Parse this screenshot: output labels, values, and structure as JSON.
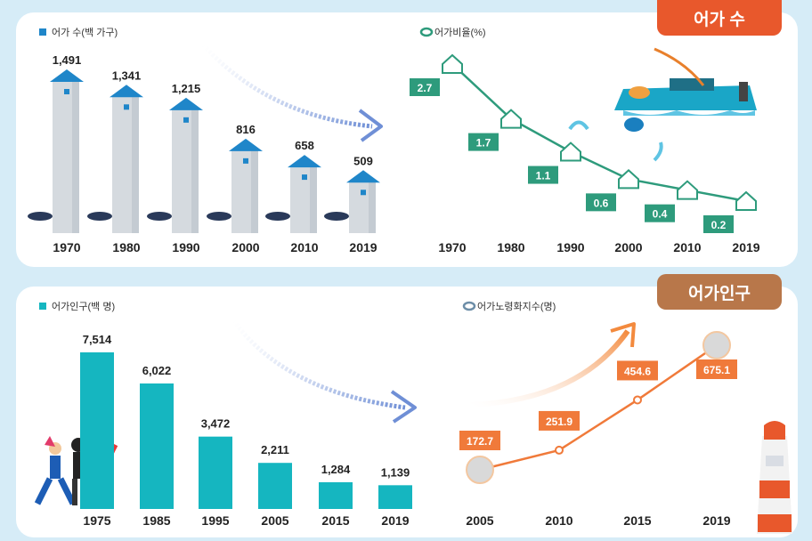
{
  "ribbons": {
    "top": "어가 수",
    "bottom": "어가인구"
  },
  "colors": {
    "house_blue": "#1f86c9",
    "pillar": "#d5dadf",
    "teal_line": "#2e9b7c",
    "bar_teal": "#15b6c0",
    "orange": "#f07a3a",
    "ribbon_orange": "#e8582c",
    "ribbon_brown": "#b8774a"
  },
  "chart_data": [
    {
      "type": "bar",
      "legend": "어가 수(백 가구)",
      "categories": [
        "1970",
        "1980",
        "1990",
        "2000",
        "2010",
        "2019"
      ],
      "values": [
        1491,
        1341,
        1215,
        816,
        658,
        509
      ],
      "value_labels": [
        "1,491",
        "1,341",
        "1,215",
        "816",
        "658",
        "509"
      ]
    },
    {
      "type": "line",
      "legend": "어가비율(%)",
      "categories": [
        "1970",
        "1980",
        "1990",
        "2000",
        "2010",
        "2019"
      ],
      "values": [
        2.7,
        1.7,
        1.1,
        0.6,
        0.4,
        0.2
      ],
      "value_labels": [
        "2.7",
        "1.7",
        "1.1",
        "0.6",
        "0.4",
        "0.2"
      ]
    },
    {
      "type": "bar",
      "legend": "어가인구(백 명)",
      "categories": [
        "1975",
        "1985",
        "1995",
        "2005",
        "2015",
        "2019"
      ],
      "values": [
        7514,
        6022,
        3472,
        2211,
        1284,
        1139
      ],
      "value_labels": [
        "7,514",
        "6,022",
        "3,472",
        "2,211",
        "1,284",
        "1,139"
      ]
    },
    {
      "type": "line",
      "legend": "어가노령화지수(명)",
      "categories": [
        "2005",
        "2010",
        "2015",
        "2019"
      ],
      "values": [
        172.7,
        251.9,
        454.6,
        675.1
      ],
      "value_labels": [
        "172.7",
        "251.9",
        "454.6",
        "675.1"
      ]
    }
  ]
}
